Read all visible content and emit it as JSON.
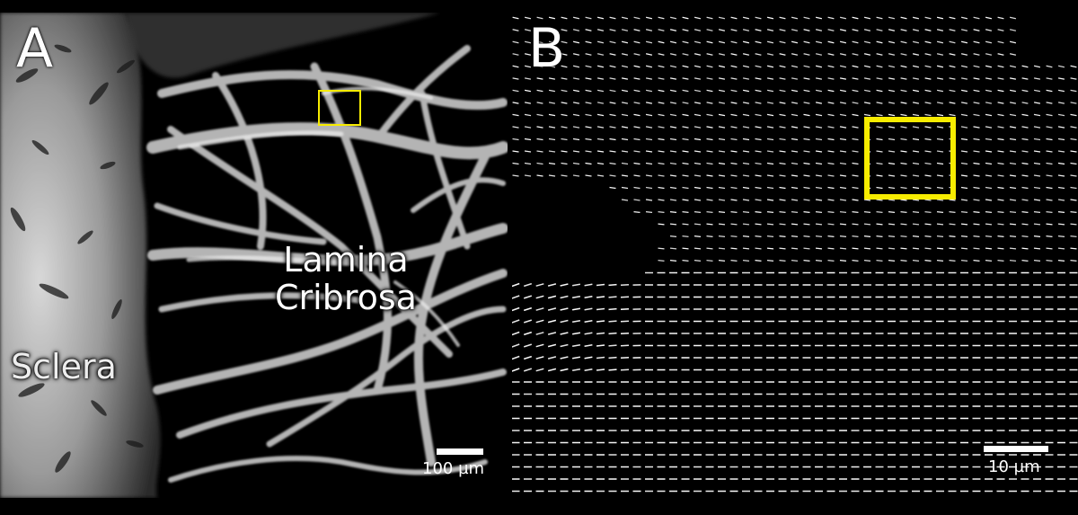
{
  "panel_a": {
    "letter": "A",
    "region_lamina_line1": "Lamina",
    "region_lamina_line2": "Cribrosa",
    "region_sclera": "Sclera",
    "scale_bar_label": "100 µm"
  },
  "panel_b": {
    "letter": "B",
    "scale_bar_label": "10 µm"
  },
  "colors": {
    "background": "#000000",
    "highlight_box": "#f7ec00",
    "text": "#ffffff"
  }
}
